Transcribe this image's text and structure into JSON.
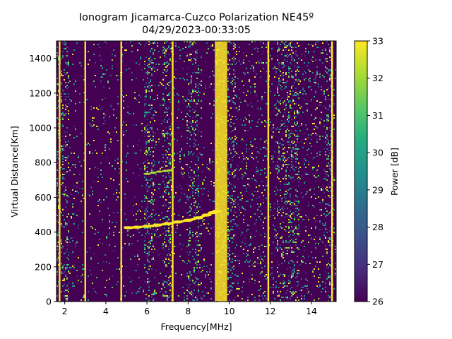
{
  "chart_data": {
    "type": "heatmap",
    "title": "Ionogram Jicamarca-Cuzco Polarization NE45º",
    "subtitle": "04/29/2023-00:33:05",
    "xlabel": "Frequency[MHz]",
    "ylabel": "Virtual Distance[Km]",
    "xlim": [
      1.6,
      15.2
    ],
    "ylim": [
      0,
      1500
    ],
    "xticks": [
      "2",
      "4",
      "6",
      "8",
      "10",
      "12",
      "14"
    ],
    "yticks": [
      "0",
      "200",
      "400",
      "600",
      "800",
      "1000",
      "1200",
      "1400"
    ],
    "colorbar": {
      "label": "Power [dB]",
      "range": [
        26,
        33
      ],
      "ticks": [
        "26",
        "27",
        "28",
        "29",
        "30",
        "31",
        "32",
        "33"
      ],
      "colormap": "viridis"
    },
    "interference_lines_mhz": [
      1.75,
      3.0,
      4.75,
      7.25,
      11.9,
      15.0
    ],
    "noise_bands_mhz": [
      [
        1.6,
        2.2
      ],
      [
        5.8,
        6.4
      ],
      [
        6.7,
        7.2
      ],
      [
        7.9,
        8.5
      ],
      [
        9.3,
        10.3
      ],
      [
        12.3,
        13.4
      ],
      [
        14.6,
        15.0
      ]
    ],
    "trace": {
      "f_mhz": [
        5.1,
        5.5,
        6.0,
        6.5,
        7.0,
        7.5,
        8.0,
        8.5,
        8.9,
        9.2,
        9.4
      ],
      "virtual_km": [
        425,
        428,
        433,
        440,
        448,
        458,
        468,
        482,
        498,
        512,
        520
      ]
    },
    "secondary_trace": {
      "f_mhz": [
        6.0,
        6.3,
        6.6,
        6.9,
        7.1
      ],
      "virtual_km": [
        735,
        742,
        748,
        752,
        755
      ]
    }
  },
  "colors": {
    "background": "#440154",
    "max": "#fde725",
    "viridis": [
      "#440154",
      "#472c7a",
      "#3b518b",
      "#2c718e",
      "#21908d",
      "#27ad81",
      "#5cc863",
      "#aadc32",
      "#fde725"
    ]
  }
}
